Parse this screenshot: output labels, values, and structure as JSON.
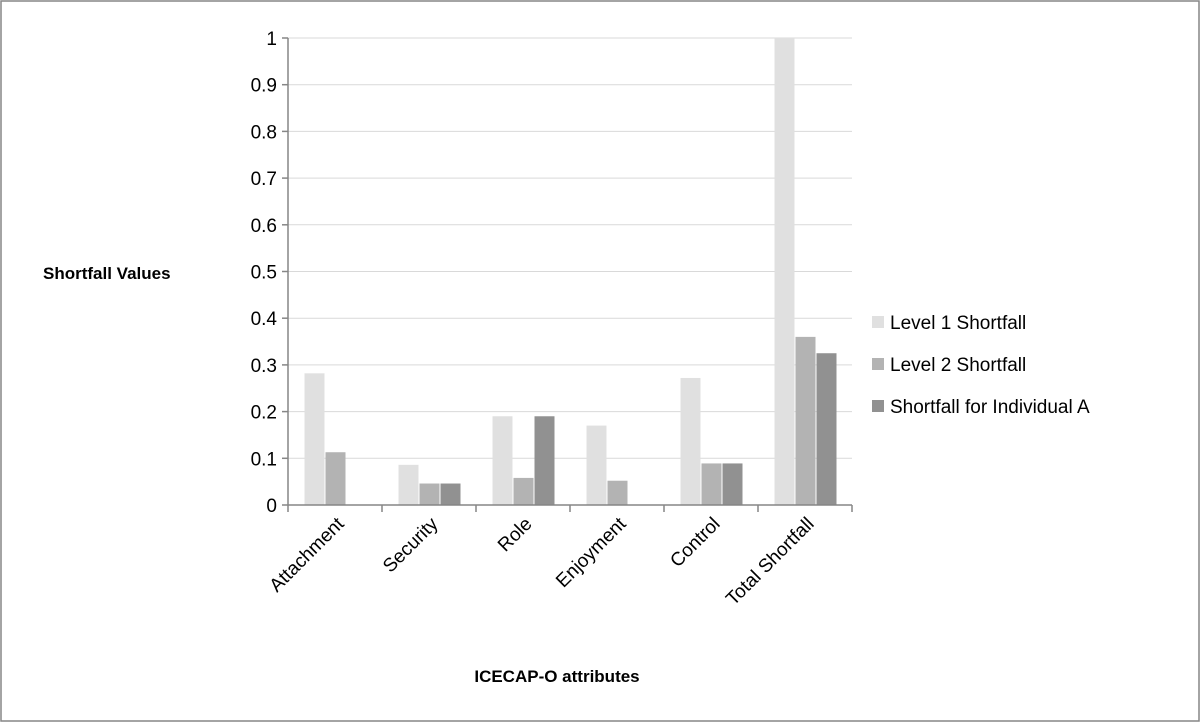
{
  "chart_data": {
    "type": "bar",
    "title": "",
    "xlabel": "ICECAP-O attributes",
    "ylabel": "Shortfall Values",
    "ylim": [
      0,
      1
    ],
    "yticks": [
      "0",
      "0.1",
      "0.2",
      "0.3",
      "0.4",
      "0.5",
      "0.6",
      "0.7",
      "0.8",
      "0.9",
      "1"
    ],
    "grid": true,
    "legend_position": "right",
    "categories": [
      "Attachment",
      "Security",
      "Role",
      "Enjoyment",
      "Control",
      "Total Shortfall"
    ],
    "series": [
      {
        "name": "Level 1 Shortfall",
        "color": "#e0e0e0",
        "values": [
          0.282,
          0.086,
          0.19,
          0.17,
          0.272,
          1.0
        ]
      },
      {
        "name": "Level 2 Shortfall",
        "color": "#b3b3b3",
        "values": [
          0.113,
          0.046,
          0.058,
          0.052,
          0.089,
          0.36
        ]
      },
      {
        "name": "Shortfall for Individual A",
        "color": "#919191",
        "values": [
          0,
          0.046,
          0.19,
          0,
          0.089,
          0.325
        ]
      }
    ]
  }
}
